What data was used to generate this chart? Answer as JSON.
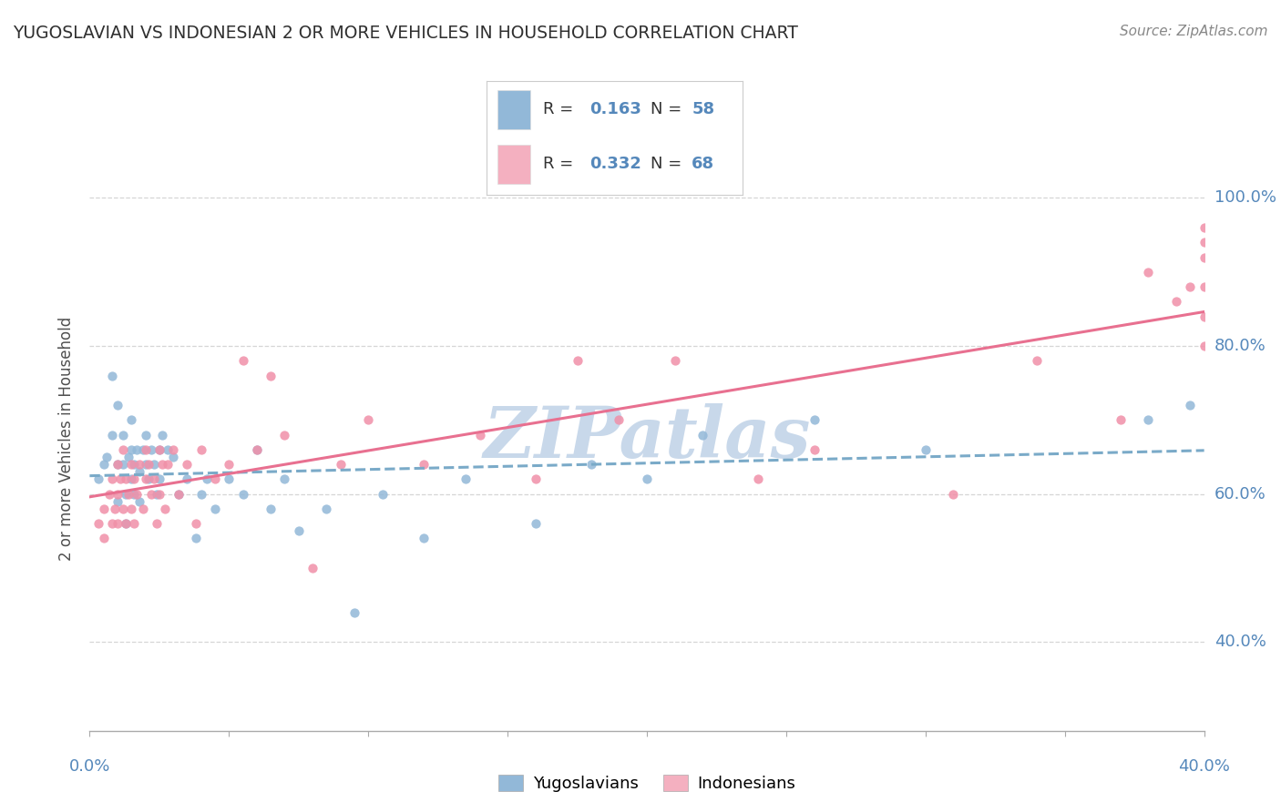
{
  "title": "YUGOSLAVIAN VS INDONESIAN 2 OR MORE VEHICLES IN HOUSEHOLD CORRELATION CHART",
  "source": "Source: ZipAtlas.com",
  "ylabel": "2 or more Vehicles in Household",
  "yaxis_ticks": [
    "40.0%",
    "60.0%",
    "80.0%",
    "100.0%"
  ],
  "yaxis_tick_vals": [
    0.4,
    0.6,
    0.8,
    1.0
  ],
  "bottom_legend": [
    {
      "label": "Yugoslavians",
      "color": "#aac4e0"
    },
    {
      "label": "Indonesians",
      "color": "#f4a0b8"
    }
  ],
  "xlim": [
    0.0,
    0.4
  ],
  "ylim": [
    0.28,
    1.07
  ],
  "blue_color": "#92b8d8",
  "pink_color": "#f090a8",
  "blue_line_color": "#7aaac8",
  "pink_line_color": "#e87090",
  "watermark": "ZIPatlas",
  "watermark_color": "#c8d8ea",
  "background_color": "#ffffff",
  "grid_color": "#cccccc",
  "title_color": "#303030",
  "axis_label_color": "#5588bb",
  "source_color": "#888888",
  "yug_scatter_x": [
    0.003,
    0.005,
    0.006,
    0.008,
    0.008,
    0.01,
    0.01,
    0.01,
    0.012,
    0.012,
    0.013,
    0.013,
    0.014,
    0.015,
    0.015,
    0.015,
    0.016,
    0.016,
    0.017,
    0.018,
    0.018,
    0.019,
    0.02,
    0.02,
    0.021,
    0.022,
    0.023,
    0.024,
    0.025,
    0.025,
    0.026,
    0.028,
    0.03,
    0.032,
    0.035,
    0.038,
    0.04,
    0.042,
    0.045,
    0.05,
    0.055,
    0.06,
    0.065,
    0.07,
    0.075,
    0.085,
    0.095,
    0.105,
    0.12,
    0.135,
    0.16,
    0.18,
    0.2,
    0.22,
    0.26,
    0.3,
    0.38,
    0.395
  ],
  "yug_scatter_y": [
    0.62,
    0.64,
    0.65,
    0.76,
    0.68,
    0.72,
    0.64,
    0.59,
    0.68,
    0.64,
    0.6,
    0.56,
    0.65,
    0.7,
    0.66,
    0.62,
    0.64,
    0.6,
    0.66,
    0.63,
    0.59,
    0.66,
    0.68,
    0.64,
    0.62,
    0.66,
    0.64,
    0.6,
    0.66,
    0.62,
    0.68,
    0.66,
    0.65,
    0.6,
    0.62,
    0.54,
    0.6,
    0.62,
    0.58,
    0.62,
    0.6,
    0.66,
    0.58,
    0.62,
    0.55,
    0.58,
    0.44,
    0.6,
    0.54,
    0.62,
    0.56,
    0.64,
    0.62,
    0.68,
    0.7,
    0.66,
    0.7,
    0.72
  ],
  "ind_scatter_x": [
    0.003,
    0.005,
    0.005,
    0.007,
    0.008,
    0.008,
    0.009,
    0.01,
    0.01,
    0.01,
    0.011,
    0.012,
    0.012,
    0.013,
    0.013,
    0.014,
    0.015,
    0.015,
    0.016,
    0.016,
    0.017,
    0.018,
    0.019,
    0.02,
    0.02,
    0.021,
    0.022,
    0.023,
    0.024,
    0.025,
    0.025,
    0.026,
    0.027,
    0.028,
    0.03,
    0.032,
    0.035,
    0.038,
    0.04,
    0.045,
    0.05,
    0.055,
    0.06,
    0.065,
    0.07,
    0.08,
    0.09,
    0.1,
    0.12,
    0.14,
    0.16,
    0.175,
    0.19,
    0.21,
    0.24,
    0.26,
    0.31,
    0.34,
    0.37,
    0.38,
    0.39,
    0.395,
    0.4,
    0.4,
    0.4,
    0.4,
    0.4,
    0.4
  ],
  "ind_scatter_y": [
    0.56,
    0.58,
    0.54,
    0.6,
    0.62,
    0.56,
    0.58,
    0.64,
    0.6,
    0.56,
    0.62,
    0.66,
    0.58,
    0.62,
    0.56,
    0.6,
    0.64,
    0.58,
    0.62,
    0.56,
    0.6,
    0.64,
    0.58,
    0.66,
    0.62,
    0.64,
    0.6,
    0.62,
    0.56,
    0.66,
    0.6,
    0.64,
    0.58,
    0.64,
    0.66,
    0.6,
    0.64,
    0.56,
    0.66,
    0.62,
    0.64,
    0.78,
    0.66,
    0.76,
    0.68,
    0.5,
    0.64,
    0.7,
    0.64,
    0.68,
    0.62,
    0.78,
    0.7,
    0.78,
    0.62,
    0.66,
    0.6,
    0.78,
    0.7,
    0.9,
    0.86,
    0.88,
    0.92,
    0.94,
    0.8,
    0.84,
    0.88,
    0.96
  ]
}
